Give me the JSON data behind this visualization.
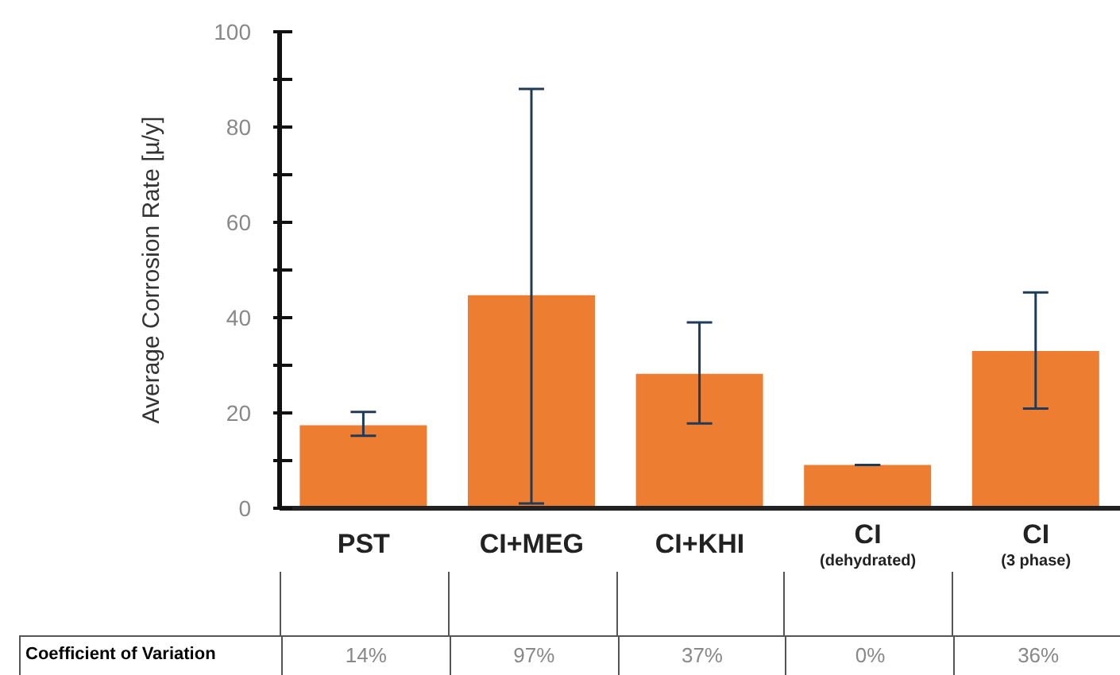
{
  "chart_data": {
    "type": "bar",
    "ylabel": "Average Corrosion Rate [µ/y]",
    "categories": [
      "PST",
      "CI+MEG",
      "CI+KHI",
      "CI (dehydrated)",
      "CI (3 phase)"
    ],
    "values": [
      17.4,
      44.7,
      28.2,
      9.1,
      33
    ],
    "color": "#ed7d31",
    "errors": [
      [
        15.2,
        20.2
      ],
      [
        1,
        88
      ],
      [
        17.8,
        39
      ],
      0,
      [
        20.9,
        45.3
      ]
    ],
    "ylim": [
      0,
      100
    ],
    "yticks": [
      0,
      {
        "value": 10,
        "label": null
      },
      20,
      {
        "value": 30,
        "label": null
      },
      40,
      {
        "value": 50,
        "label": null
      },
      60,
      {
        "value": 70,
        "label": null
      },
      80,
      {
        "value": 90,
        "label": null
      },
      100
    ],
    "grid": false,
    "legend": false,
    "annotations": [
      "Coefficient of Variation",
      "14%",
      "97%",
      "37%",
      "0%",
      "36%"
    ]
  }
}
